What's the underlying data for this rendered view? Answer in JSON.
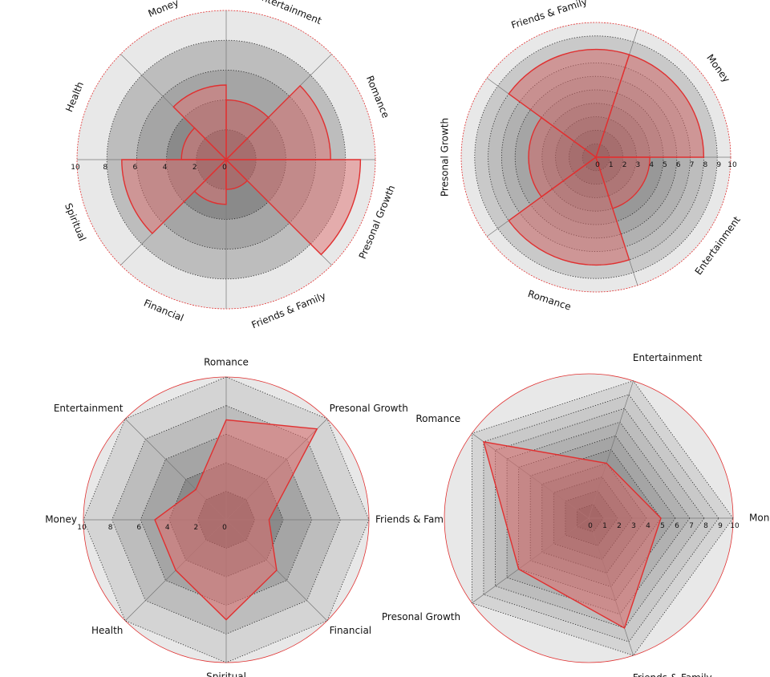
{
  "chart_data": [
    {
      "type": "polar-bar",
      "title": "",
      "categories": [
        "Entertainment",
        "Money",
        "Health",
        "Spiritual",
        "Financial",
        "Friends & Family",
        "Presonal Growth",
        "Romance"
      ],
      "values": [
        4,
        5,
        3,
        7,
        3,
        2,
        9,
        7
      ],
      "rlim": [
        0,
        10
      ],
      "rticks": [
        0,
        2,
        4,
        6,
        8,
        10
      ],
      "grid": true,
      "fill_color": "#e07070",
      "edge_color": "#e03030"
    },
    {
      "type": "polar-bar",
      "title": "",
      "categories": [
        "Money",
        "Friends & Family",
        "Presonal Growth",
        "Romance",
        "Entertainment"
      ],
      "values": [
        8,
        8,
        5,
        8,
        4
      ],
      "rlim": [
        0,
        10
      ],
      "rticks": [
        0,
        1,
        2,
        3,
        4,
        5,
        6,
        7,
        8,
        9,
        10
      ],
      "tick_labels": [
        "0",
        "1",
        "2",
        "3",
        "4",
        "5",
        "6",
        "7",
        "8",
        "9",
        "10"
      ],
      "grid": true,
      "fill_color": "#e07070",
      "edge_color": "#e03030"
    },
    {
      "type": "radar",
      "title": "",
      "categories": [
        "Romance",
        "Entertainment",
        "Money",
        "Health",
        "Spiritual",
        "Financial",
        "Friends & Family",
        "Presonal Growth"
      ],
      "values": [
        7,
        3,
        5,
        5,
        7,
        5,
        3,
        9
      ],
      "rlim": [
        0,
        10
      ],
      "rticks": [
        0,
        2,
        4,
        6,
        8,
        10
      ],
      "grid": true,
      "fill_color": "#e07070",
      "edge_color": "#e03030"
    },
    {
      "type": "radar",
      "title": "",
      "categories": [
        "Money",
        "Entertainment",
        "Romance",
        "Presonal Growth",
        "Friends & Family"
      ],
      "values": [
        5,
        4,
        9,
        6,
        8
      ],
      "rlim": [
        0,
        10
      ],
      "rticks": [
        0,
        1,
        2,
        3,
        4,
        5,
        6,
        7,
        8,
        9,
        10
      ],
      "tick_labels": [
        "0",
        "1",
        "2",
        "3",
        "4",
        "5",
        "6",
        "7",
        "8",
        "9",
        "10"
      ],
      "grid": true,
      "fill_color": "#e07070",
      "edge_color": "#e03030"
    }
  ]
}
